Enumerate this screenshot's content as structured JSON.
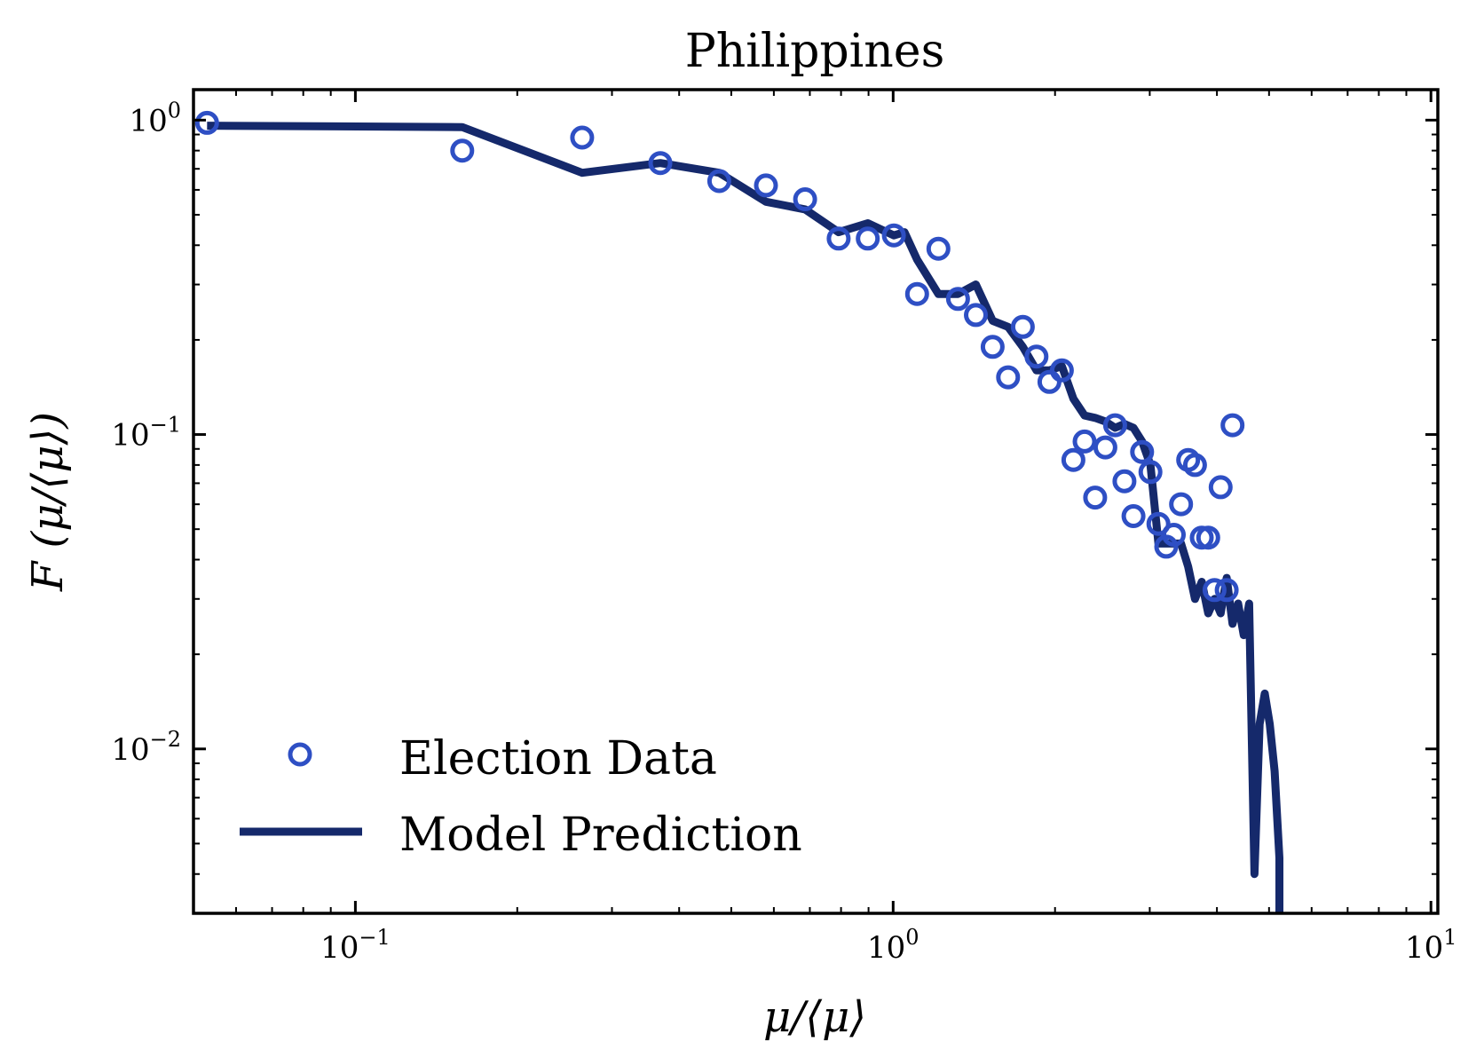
{
  "chart_data": {
    "type": "line",
    "title": "Philippines",
    "xlabel": "μ/⟨μ⟩",
    "ylabel": "F (μ/⟨μ⟩)",
    "x_scale": "log",
    "y_scale": "log",
    "xlim": [
      0.05,
      10.3
    ],
    "ylim": [
      0.003,
      1.25
    ],
    "x_ticks": [
      {
        "value": 0.1,
        "base": "10",
        "exp": "−1"
      },
      {
        "value": 1,
        "base": "10",
        "exp": "0"
      },
      {
        "value": 10,
        "base": "10",
        "exp": "1"
      }
    ],
    "y_ticks": [
      {
        "value": 1,
        "base": "10",
        "exp": "0"
      },
      {
        "value": 0.1,
        "base": "10",
        "exp": "−1"
      },
      {
        "value": 0.01,
        "base": "10",
        "exp": "−2"
      }
    ],
    "grid": false,
    "legend_position": "bottom-left",
    "series": [
      {
        "name": "Election Data",
        "kind": "scatter",
        "marker": "open-circle",
        "color": "#2e4fc4",
        "points": [
          [
            0.053,
            0.98
          ],
          [
            0.158,
            0.8
          ],
          [
            0.264,
            0.88
          ],
          [
            0.369,
            0.73
          ],
          [
            0.475,
            0.64
          ],
          [
            0.58,
            0.62
          ],
          [
            0.686,
            0.56
          ],
          [
            0.792,
            0.42
          ],
          [
            0.897,
            0.42
          ],
          [
            1.003,
            0.43
          ],
          [
            1.108,
            0.28
          ],
          [
            1.214,
            0.39
          ],
          [
            1.32,
            0.27
          ],
          [
            1.425,
            0.24
          ],
          [
            1.531,
            0.19
          ],
          [
            1.636,
            0.152
          ],
          [
            1.742,
            0.22
          ],
          [
            1.847,
            0.177
          ],
          [
            1.953,
            0.147
          ],
          [
            2.059,
            0.16
          ],
          [
            2.164,
            0.083
          ],
          [
            2.27,
            0.095
          ],
          [
            2.375,
            0.063
          ],
          [
            2.481,
            0.091
          ],
          [
            2.587,
            0.107
          ],
          [
            2.692,
            0.071
          ],
          [
            2.798,
            0.055
          ],
          [
            2.903,
            0.088
          ],
          [
            3.009,
            0.076
          ],
          [
            3.114,
            0.052
          ],
          [
            3.22,
            0.044
          ],
          [
            3.326,
            0.048
          ],
          [
            3.431,
            0.06
          ],
          [
            3.537,
            0.083
          ],
          [
            3.642,
            0.08
          ],
          [
            3.748,
            0.047
          ],
          [
            3.853,
            0.047
          ],
          [
            3.959,
            0.032
          ],
          [
            4.065,
            0.068
          ],
          [
            4.17,
            0.032
          ],
          [
            4.276,
            0.107
          ]
        ]
      },
      {
        "name": "Model Prediction",
        "kind": "line",
        "color": "#15296b",
        "points": [
          [
            0.053,
            0.96
          ],
          [
            0.158,
            0.95
          ],
          [
            0.264,
            0.68
          ],
          [
            0.369,
            0.73
          ],
          [
            0.475,
            0.68
          ],
          [
            0.58,
            0.55
          ],
          [
            0.686,
            0.52
          ],
          [
            0.792,
            0.44
          ],
          [
            0.897,
            0.47
          ],
          [
            1.003,
            0.43
          ],
          [
            1.05,
            0.44
          ],
          [
            1.108,
            0.36
          ],
          [
            1.214,
            0.28
          ],
          [
            1.32,
            0.28
          ],
          [
            1.425,
            0.3
          ],
          [
            1.531,
            0.23
          ],
          [
            1.636,
            0.22
          ],
          [
            1.742,
            0.19
          ],
          [
            1.847,
            0.16
          ],
          [
            1.953,
            0.16
          ],
          [
            2.059,
            0.165
          ],
          [
            2.164,
            0.13
          ],
          [
            2.27,
            0.115
          ],
          [
            2.375,
            0.113
          ],
          [
            2.481,
            0.11
          ],
          [
            2.587,
            0.105
          ],
          [
            2.692,
            0.108
          ],
          [
            2.798,
            0.105
          ],
          [
            2.903,
            0.095
          ],
          [
            3.009,
            0.08
          ],
          [
            3.114,
            0.045
          ],
          [
            3.22,
            0.045
          ],
          [
            3.326,
            0.045
          ],
          [
            3.431,
            0.045
          ],
          [
            3.537,
            0.038
          ],
          [
            3.642,
            0.03
          ],
          [
            3.748,
            0.034
          ],
          [
            3.853,
            0.027
          ],
          [
            3.959,
            0.03
          ],
          [
            4.065,
            0.027
          ],
          [
            4.17,
            0.035
          ],
          [
            4.276,
            0.025
          ],
          [
            4.381,
            0.029
          ],
          [
            4.487,
            0.023
          ],
          [
            4.592,
            0.029
          ],
          [
            4.698,
            0.004
          ],
          [
            4.803,
            0.012
          ],
          [
            4.909,
            0.015
          ],
          [
            5.015,
            0.012
          ],
          [
            5.12,
            0.0085
          ],
          [
            5.226,
            0.0045
          ],
          [
            5.226,
            0.003
          ]
        ]
      }
    ]
  }
}
